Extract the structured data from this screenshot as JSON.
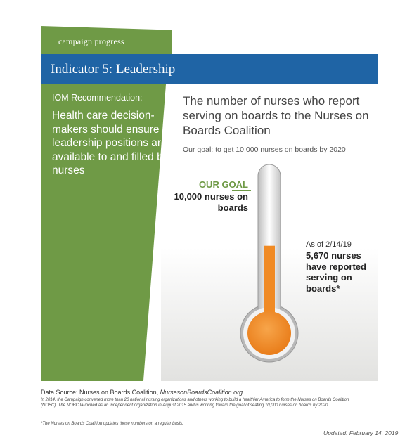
{
  "tab_label": "campaign progress",
  "header_title": "Indicator 5: Leadership",
  "recommendation": {
    "label": "IOM Recommendation:",
    "text": "Health care decision-makers should ensure leadership positions are available to and filled by nurses"
  },
  "headline": "The number of nurses who report serving on boards to the Nurses on Boards Coalition",
  "goal_sentence": "Our goal: to get 10,000 nurses on boards by 2020",
  "goal": {
    "label": "OUR GOAL",
    "value_text": "10,000 nurses on boards",
    "value": 10000
  },
  "current": {
    "as_of": "As of 2/14/19",
    "value_text": "5,670 nurses have reported serving on boards*",
    "value": 5670
  },
  "colors": {
    "green": "#6f9a46",
    "blue": "#1f64a5",
    "orange": "#f08a24"
  },
  "source": {
    "prefix": "Data Source: Nurses on Boards Coalition, ",
    "site": "NursesonBoardsCoalition.org."
  },
  "note": "In 2014, the Campaign convened more than 20 national nursing organizations and others working to build a healthier America to form the Nurses on Boards Coalition (NOBC). The NOBC launched as an independent organization in August 2015 and is working toward the goal of seating 10,000 nurses on boards by 2020.",
  "footnote": "*The Nurses on Boards Coalition updates these numbers on a regular basis.",
  "updated": "Updated: February 14, 2019"
}
